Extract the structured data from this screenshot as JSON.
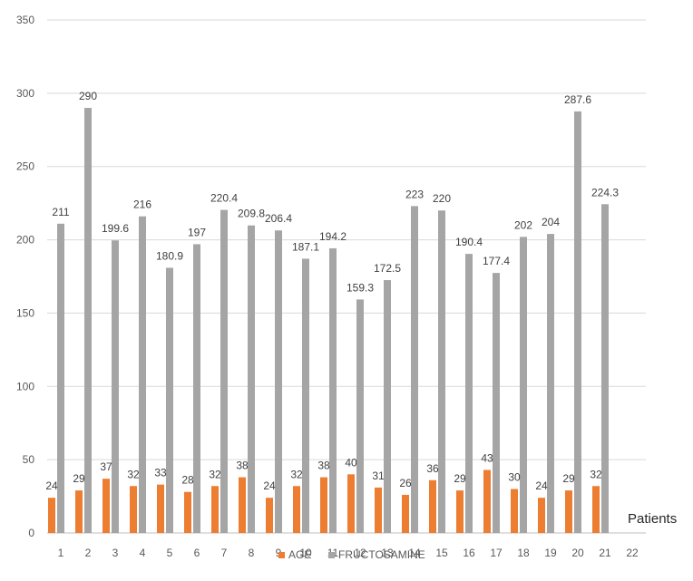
{
  "chart_data": {
    "type": "bar",
    "title": "",
    "xlabel": "Patients",
    "ylabel": "",
    "ylim": [
      0,
      350
    ],
    "yticks": [
      0,
      50,
      100,
      150,
      200,
      250,
      300,
      350
    ],
    "grid": true,
    "legend_position": "bottom",
    "categories": [
      "1",
      "2",
      "3",
      "4",
      "5",
      "6",
      "7",
      "8",
      "9",
      "10",
      "11",
      "12",
      "13",
      "14",
      "15",
      "16",
      "17",
      "18",
      "19",
      "20",
      "21",
      "22"
    ],
    "series": [
      {
        "name": "AGE",
        "color": "#ED7D31",
        "values": [
          24,
          29,
          37,
          32,
          33,
          28,
          32,
          38,
          24,
          32,
          38,
          40,
          31,
          26,
          36,
          29,
          43,
          30,
          24,
          29,
          32,
          null
        ],
        "labels": [
          "24",
          "29",
          "37",
          "32",
          "33",
          "28",
          "32",
          "38",
          "24",
          "32",
          "38",
          "40",
          "31",
          "26",
          "36",
          "29",
          "43",
          "30",
          "24",
          "29",
          "32",
          ""
        ]
      },
      {
        "name": "FRUCTOSAMINE",
        "color": "#A5A5A5",
        "values": [
          211,
          290,
          199.6,
          216,
          180.9,
          197,
          220.4,
          209.8,
          206.4,
          187.1,
          194.2,
          159.3,
          172.5,
          223,
          220,
          190.4,
          177.4,
          202,
          204,
          287.6,
          224.3,
          null
        ],
        "labels": [
          "211",
          "290",
          "199.6",
          "216",
          "180.9",
          "197",
          "220.4",
          "209.8",
          "206.4",
          "187.1",
          "194.2",
          "159.3",
          "172.5",
          "223",
          "220",
          "190.4",
          "177.4",
          "202",
          "204",
          "287.6",
          "224.3",
          ""
        ]
      }
    ]
  }
}
